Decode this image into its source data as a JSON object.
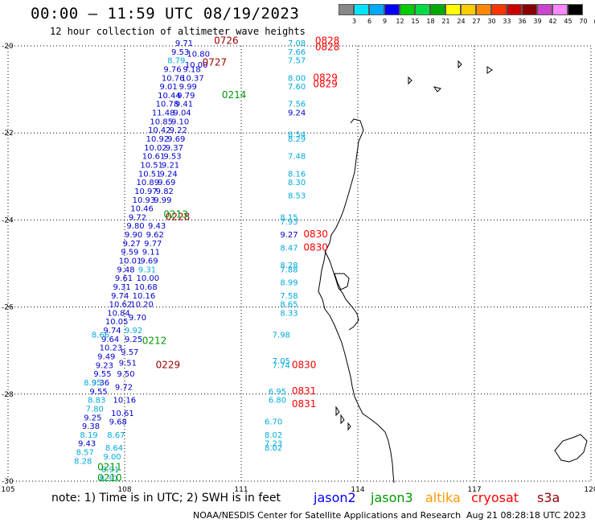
{
  "header": {
    "title": "00:00 – 11:59 UTC 08/19/2023",
    "subtitle": "12 hour collection of altimeter wave heights"
  },
  "color_scale": {
    "labels": [
      "3",
      "6",
      "9",
      "12",
      "15",
      "18",
      "21",
      "24",
      "27",
      "30",
      "33",
      "36",
      "39",
      "42",
      "45",
      "70",
      "(ft)"
    ],
    "colors": [
      "#888888",
      "#00e5ff",
      "#00aaff",
      "#0000ff",
      "#00cc00",
      "#00dd44",
      "#00aa00",
      "#ffff00",
      "#ffcc00",
      "#ff8800",
      "#ff3300",
      "#cc0000",
      "#880000",
      "#cc44cc",
      "#ff88ff",
      "#000000"
    ]
  },
  "axes": {
    "longitude_labels": [
      "105",
      "108",
      "111",
      "114",
      "117",
      "120"
    ],
    "latitude_labels": [
      "-20",
      "-22",
      "-24",
      "-26",
      "-28",
      "-30"
    ]
  },
  "note": "note: 1) Time is in UTC; 2) SWH is in feet",
  "missions": [
    {
      "name": "jason2",
      "color": "#0000ff"
    },
    {
      "name": "jason3",
      "color": "#009900"
    },
    {
      "name": "altika",
      "color": "#ff9900"
    },
    {
      "name": "cryosat",
      "color": "#ff0000"
    },
    {
      "name": "s3a",
      "color": "#990000"
    }
  ],
  "footer": {
    "credit": "NOAA/NESDIS Center for Satellite Applications and Research",
    "timestamp": "Aug 21 08:28:18 UTC 2023"
  },
  "observations": [
    {
      "lon": 109.3,
      "lat": -20.0,
      "text": "9.71",
      "mission": "jason2"
    },
    {
      "lon": 109.2,
      "lat": -20.2,
      "text": "9.53",
      "mission": "jason2"
    },
    {
      "lon": 109.1,
      "lat": -20.4,
      "text": "8.79",
      "mission": "altika"
    },
    {
      "lon": 109.0,
      "lat": -20.6,
      "text": "9.76",
      "mission": "jason2"
    },
    {
      "lon": 108.95,
      "lat": -20.8,
      "text": "10.76",
      "mission": "jason2"
    },
    {
      "lon": 108.9,
      "lat": -21.0,
      "text": "9.01",
      "mission": "jason2"
    },
    {
      "lon": 108.85,
      "lat": -21.2,
      "text": "10.44",
      "mission": "jason2"
    },
    {
      "lon": 108.8,
      "lat": -21.4,
      "text": "10.78",
      "mission": "jason2"
    },
    {
      "lon": 108.7,
      "lat": -21.6,
      "text": "11.48",
      "mission": "jason2"
    },
    {
      "lon": 108.65,
      "lat": -21.8,
      "text": "10.85",
      "mission": "jason2"
    },
    {
      "lon": 108.6,
      "lat": -22.0,
      "text": "10.42",
      "mission": "jason2"
    },
    {
      "lon": 108.55,
      "lat": -22.2,
      "text": "10.92",
      "mission": "jason2"
    },
    {
      "lon": 108.5,
      "lat": -22.4,
      "text": "10.02",
      "mission": "jason2"
    },
    {
      "lon": 108.45,
      "lat": -22.6,
      "text": "10.61",
      "mission": "jason2"
    },
    {
      "lon": 108.4,
      "lat": -22.8,
      "text": "10.51",
      "mission": "jason2"
    },
    {
      "lon": 108.35,
      "lat": -23.0,
      "text": "10.51",
      "mission": "jason2"
    },
    {
      "lon": 108.3,
      "lat": -23.2,
      "text": "10.89",
      "mission": "jason2"
    },
    {
      "lon": 108.25,
      "lat": -23.4,
      "text": "10.97",
      "mission": "jason2"
    },
    {
      "lon": 108.2,
      "lat": -23.6,
      "text": "10.93",
      "mission": "jason2"
    },
    {
      "lon": 108.15,
      "lat": -23.8,
      "text": "10.46",
      "mission": "jason2"
    },
    {
      "lon": 108.1,
      "lat": -24.0,
      "text": "9.72",
      "mission": "jason2"
    },
    {
      "lon": 108.05,
      "lat": -24.2,
      "text": "9.80",
      "mission": "jason2"
    },
    {
      "lon": 108.0,
      "lat": -24.4,
      "text": "9.90",
      "mission": "jason2"
    },
    {
      "lon": 107.95,
      "lat": -24.6,
      "text": "9.27",
      "mission": "jason2"
    },
    {
      "lon": 107.9,
      "lat": -24.8,
      "text": "9.59",
      "mission": "jason2"
    },
    {
      "lon": 107.85,
      "lat": -25.0,
      "text": "10.01",
      "mission": "jason2"
    },
    {
      "lon": 107.8,
      "lat": -25.2,
      "text": "9.48",
      "mission": "jason2"
    },
    {
      "lon": 107.75,
      "lat": -25.4,
      "text": "9.61",
      "mission": "jason2"
    },
    {
      "lon": 107.7,
      "lat": -25.6,
      "text": "9.31",
      "mission": "jason2"
    },
    {
      "lon": 107.65,
      "lat": -25.8,
      "text": "9.74",
      "mission": "jason2"
    },
    {
      "lon": 107.6,
      "lat": -26.0,
      "text": "10.62",
      "mission": "jason2"
    },
    {
      "lon": 107.55,
      "lat": -26.2,
      "text": "10.84",
      "mission": "jason2"
    },
    {
      "lon": 107.5,
      "lat": -26.4,
      "text": "10.05",
      "mission": "jason2"
    },
    {
      "lon": 107.45,
      "lat": -26.6,
      "text": "9.74",
      "mission": "jason2"
    },
    {
      "lon": 107.4,
      "lat": -26.8,
      "text": "9.64",
      "mission": "jason2"
    },
    {
      "lon": 107.35,
      "lat": -27.0,
      "text": "10.23",
      "mission": "jason2"
    },
    {
      "lon": 107.3,
      "lat": -27.2,
      "text": "9.49",
      "mission": "jason2"
    },
    {
      "lon": 107.25,
      "lat": -27.4,
      "text": "9.23",
      "mission": "jason2"
    },
    {
      "lon": 107.2,
      "lat": -27.6,
      "text": "9.55",
      "mission": "jason2"
    },
    {
      "lon": 107.15,
      "lat": -27.8,
      "text": "9.36",
      "mission": "jason2"
    },
    {
      "lon": 107.1,
      "lat": -28.0,
      "text": "9.55",
      "mission": "jason2"
    },
    {
      "lon": 107.05,
      "lat": -28.2,
      "text": "8.83",
      "mission": "altika"
    },
    {
      "lon": 107.0,
      "lat": -28.4,
      "text": "7.80",
      "mission": "altika"
    },
    {
      "lon": 106.95,
      "lat": -28.6,
      "text": "9.25",
      "mission": "jason2"
    },
    {
      "lon": 106.9,
      "lat": -28.8,
      "text": "9.38",
      "mission": "jason2"
    },
    {
      "lon": 106.85,
      "lat": -29.0,
      "text": "8.19",
      "mission": "altika"
    },
    {
      "lon": 106.8,
      "lat": -29.2,
      "text": "9.43",
      "mission": "jason2"
    },
    {
      "lon": 106.75,
      "lat": -29.4,
      "text": "8.57",
      "mission": "altika"
    },
    {
      "lon": 106.7,
      "lat": -29.6,
      "text": "8.28",
      "mission": "altika"
    },
    {
      "lon": 112.2,
      "lat": -20.0,
      "text": "7.08",
      "mission": "altika"
    },
    {
      "lon": 112.2,
      "lat": -20.2,
      "text": "7.66",
      "mission": "altika"
    },
    {
      "lon": 112.2,
      "lat": -20.4,
      "text": "7.57",
      "mission": "altika"
    },
    {
      "lon": 112.2,
      "lat": -20.8,
      "text": "8.00",
      "mission": "altika"
    },
    {
      "lon": 112.2,
      "lat": -21.0,
      "text": "7.60",
      "mission": "altika"
    },
    {
      "lon": 112.2,
      "lat": -21.4,
      "text": "7.56",
      "mission": "altika"
    },
    {
      "lon": 112.2,
      "lat": -21.6,
      "text": "9.24",
      "mission": "jason2"
    },
    {
      "lon": 112.2,
      "lat": -22.1,
      "text": "8.54",
      "mission": "altika"
    },
    {
      "lon": 112.2,
      "lat": -22.2,
      "text": "8.29",
      "mission": "altika"
    },
    {
      "lon": 112.2,
      "lat": -22.6,
      "text": "7.48",
      "mission": "altika"
    },
    {
      "lon": 112.2,
      "lat": -23.0,
      "text": "8.16",
      "mission": "altika"
    },
    {
      "lon": 112.2,
      "lat": -23.2,
      "text": "8.30",
      "mission": "altika"
    },
    {
      "lon": 112.2,
      "lat": -23.5,
      "text": "8.53",
      "mission": "altika"
    },
    {
      "lon": 112.0,
      "lat": -24.0,
      "text": "8.15",
      "mission": "altika"
    },
    {
      "lon": 112.0,
      "lat": -24.1,
      "text": "7.93",
      "mission": "altika"
    },
    {
      "lon": 112.0,
      "lat": -24.4,
      "text": "9.27",
      "mission": "jason2"
    },
    {
      "lon": 112.0,
      "lat": -24.7,
      "text": "8.47",
      "mission": "altika"
    },
    {
      "lon": 112.0,
      "lat": -25.1,
      "text": "8.28",
      "mission": "altika"
    },
    {
      "lon": 112.0,
      "lat": -25.2,
      "text": "7.88",
      "mission": "altika"
    },
    {
      "lon": 112.0,
      "lat": -25.5,
      "text": "8.99",
      "mission": "altika"
    },
    {
      "lon": 112.0,
      "lat": -25.8,
      "text": "7.58",
      "mission": "altika"
    },
    {
      "lon": 112.0,
      "lat": -26.0,
      "text": "8.65",
      "mission": "altika"
    },
    {
      "lon": 112.0,
      "lat": -26.2,
      "text": "8.33",
      "mission": "altika"
    },
    {
      "lon": 111.8,
      "lat": -26.7,
      "text": "7.98",
      "mission": "altika"
    },
    {
      "lon": 111.8,
      "lat": -27.3,
      "text": "7.05",
      "mission": "altika"
    },
    {
      "lon": 111.8,
      "lat": -27.4,
      "text": "7.74",
      "mission": "altika"
    },
    {
      "lon": 111.7,
      "lat": -28.0,
      "text": "6.95",
      "mission": "altika"
    },
    {
      "lon": 111.7,
      "lat": -28.2,
      "text": "6.80",
      "mission": "altika"
    },
    {
      "lon": 111.6,
      "lat": -28.7,
      "text": "6.70",
      "mission": "altika"
    },
    {
      "lon": 111.6,
      "lat": -29.0,
      "text": "8.02",
      "mission": "altika"
    },
    {
      "lon": 111.6,
      "lat": -29.2,
      "text": "7.23",
      "mission": "altika"
    },
    {
      "lon": 111.6,
      "lat": -29.3,
      "text": "8.02",
      "mission": "altika"
    },
    {
      "lon": 109.6,
      "lat": -20.25,
      "text": "10.80",
      "mission": "jason2"
    },
    {
      "lon": 109.55,
      "lat": -20.5,
      "text": "10.00",
      "mission": "jason2"
    },
    {
      "lon": 109.5,
      "lat": -20.6,
      "text": "9.18",
      "mission": "jason2"
    },
    {
      "lon": 109.45,
      "lat": -20.8,
      "text": "10.37",
      "mission": "jason2"
    },
    {
      "lon": 109.4,
      "lat": -21.0,
      "text": "9.99",
      "mission": "jason2"
    },
    {
      "lon": 109.35,
      "lat": -21.2,
      "text": "9.79",
      "mission": "jason2"
    },
    {
      "lon": 109.3,
      "lat": -21.4,
      "text": "9.41",
      "mission": "jason2"
    },
    {
      "lon": 109.25,
      "lat": -21.6,
      "text": "9.04",
      "mission": "jason2"
    },
    {
      "lon": 109.2,
      "lat": -21.8,
      "text": "9.10",
      "mission": "jason2"
    },
    {
      "lon": 109.15,
      "lat": -22.0,
      "text": "9.22",
      "mission": "jason2"
    },
    {
      "lon": 109.1,
      "lat": -22.2,
      "text": "9.69",
      "mission": "jason2"
    },
    {
      "lon": 109.05,
      "lat": -22.4,
      "text": "9.37",
      "mission": "jason2"
    },
    {
      "lon": 109.0,
      "lat": -22.6,
      "text": "9.53",
      "mission": "jason2"
    },
    {
      "lon": 108.95,
      "lat": -22.8,
      "text": "9.21",
      "mission": "jason2"
    },
    {
      "lon": 108.9,
      "lat": -23.0,
      "text": "9.24",
      "mission": "jason2"
    },
    {
      "lon": 108.85,
      "lat": -23.2,
      "text": "9.69",
      "mission": "jason2"
    },
    {
      "lon": 108.8,
      "lat": -23.4,
      "text": "9.82",
      "mission": "jason2"
    },
    {
      "lon": 108.75,
      "lat": -23.6,
      "text": "9.99",
      "mission": "jason2"
    },
    {
      "lon": 108.6,
      "lat": -24.2,
      "text": "9.43",
      "mission": "jason2"
    },
    {
      "lon": 108.55,
      "lat": -24.4,
      "text": "9.62",
      "mission": "jason2"
    },
    {
      "lon": 108.5,
      "lat": -24.6,
      "text": "9.77",
      "mission": "jason2"
    },
    {
      "lon": 108.45,
      "lat": -24.8,
      "text": "9.11",
      "mission": "jason2"
    },
    {
      "lon": 108.4,
      "lat": -25.0,
      "text": "9.69",
      "mission": "jason2"
    },
    {
      "lon": 108.35,
      "lat": -25.2,
      "text": "9.31",
      "mission": "altika"
    },
    {
      "lon": 108.3,
      "lat": -25.4,
      "text": "10.00",
      "mission": "jason2"
    },
    {
      "lon": 108.25,
      "lat": -25.6,
      "text": "10.68",
      "mission": "jason2"
    },
    {
      "lon": 108.2,
      "lat": -25.8,
      "text": "10.16",
      "mission": "jason2"
    },
    {
      "lon": 108.15,
      "lat": -26.0,
      "text": "10.20",
      "mission": "jason2"
    },
    {
      "lon": 108.1,
      "lat": -26.3,
      "text": "9.70",
      "mission": "jason2"
    },
    {
      "lon": 108.0,
      "lat": -26.6,
      "text": "9.92",
      "mission": "altika"
    },
    {
      "lon": 108.0,
      "lat": -26.8,
      "text": "9.25",
      "mission": "jason2"
    },
    {
      "lon": 107.9,
      "lat": -27.1,
      "text": "9.57",
      "mission": "jason2"
    },
    {
      "lon": 107.85,
      "lat": -27.35,
      "text": "9.51",
      "mission": "jason2"
    },
    {
      "lon": 107.8,
      "lat": -27.6,
      "text": "9.50",
      "mission": "jason2"
    },
    {
      "lon": 107.75,
      "lat": -27.9,
      "text": "9.72",
      "mission": "jason2"
    },
    {
      "lon": 107.7,
      "lat": -28.2,
      "text": "10.16",
      "mission": "jason2"
    },
    {
      "lon": 107.65,
      "lat": -28.5,
      "text": "10.61",
      "mission": "jason2"
    },
    {
      "lon": 107.6,
      "lat": -28.7,
      "text": "9.68",
      "mission": "jason2"
    },
    {
      "lon": 107.55,
      "lat": -29.0,
      "text": "8.67",
      "mission": "altika"
    },
    {
      "lon": 107.5,
      "lat": -29.3,
      "text": "8.64",
      "mission": "altika"
    },
    {
      "lon": 107.45,
      "lat": -29.5,
      "text": "9.00",
      "mission": "altika"
    },
    {
      "lon": 107.4,
      "lat": -29.8,
      "text": "8.91",
      "mission": "altika"
    },
    {
      "lon": 107.35,
      "lat": -30.0,
      "text": "8.30",
      "mission": "altika"
    },
    {
      "lon": 107.15,
      "lat": -26.7,
      "text": "8.66",
      "mission": "altika"
    },
    {
      "lon": 106.95,
      "lat": -27.8,
      "text": "8.95",
      "mission": "altika"
    }
  ],
  "time_labels": [
    {
      "lon": 110.3,
      "lat": -19.95,
      "text": "0726",
      "mission": "s3a"
    },
    {
      "lon": 110.0,
      "lat": -20.45,
      "text": "0727",
      "mission": "s3a"
    },
    {
      "lon": 112.9,
      "lat": -19.95,
      "text": "0828",
      "mission": "cryosat"
    },
    {
      "lon": 112.9,
      "lat": -20.1,
      "text": "0828",
      "mission": "cryosat"
    },
    {
      "lon": 112.85,
      "lat": -20.8,
      "text": "0829",
      "mission": "cryosat"
    },
    {
      "lon": 112.85,
      "lat": -20.95,
      "text": "0829",
      "mission": "cryosat"
    },
    {
      "lon": 110.5,
      "lat": -21.2,
      "text": "0214",
      "mission": "jason3"
    },
    {
      "lon": 109.05,
      "lat": -24.0,
      "text": "0228",
      "mission": "s3a"
    },
    {
      "lon": 109.0,
      "lat": -23.95,
      "text": "0213",
      "mission": "jason3"
    },
    {
      "lon": 112.6,
      "lat": -24.4,
      "text": "0830",
      "mission": "cryosat"
    },
    {
      "lon": 112.6,
      "lat": -24.7,
      "text": "0830",
      "mission": "cryosat"
    },
    {
      "lon": 108.45,
      "lat": -26.85,
      "text": "0212",
      "mission": "jason3"
    },
    {
      "lon": 108.8,
      "lat": -27.4,
      "text": "0229",
      "mission": "s3a"
    },
    {
      "lon": 112.3,
      "lat": -27.4,
      "text": "0830",
      "mission": "cryosat"
    },
    {
      "lon": 112.3,
      "lat": -28.0,
      "text": "0831",
      "mission": "cryosat"
    },
    {
      "lon": 112.3,
      "lat": -28.3,
      "text": "0831",
      "mission": "cryosat"
    },
    {
      "lon": 107.3,
      "lat": -29.75,
      "text": "0211",
      "mission": "jason3"
    },
    {
      "lon": 107.3,
      "lat": -30.0,
      "text": "0210",
      "mission": "jason3"
    }
  ]
}
